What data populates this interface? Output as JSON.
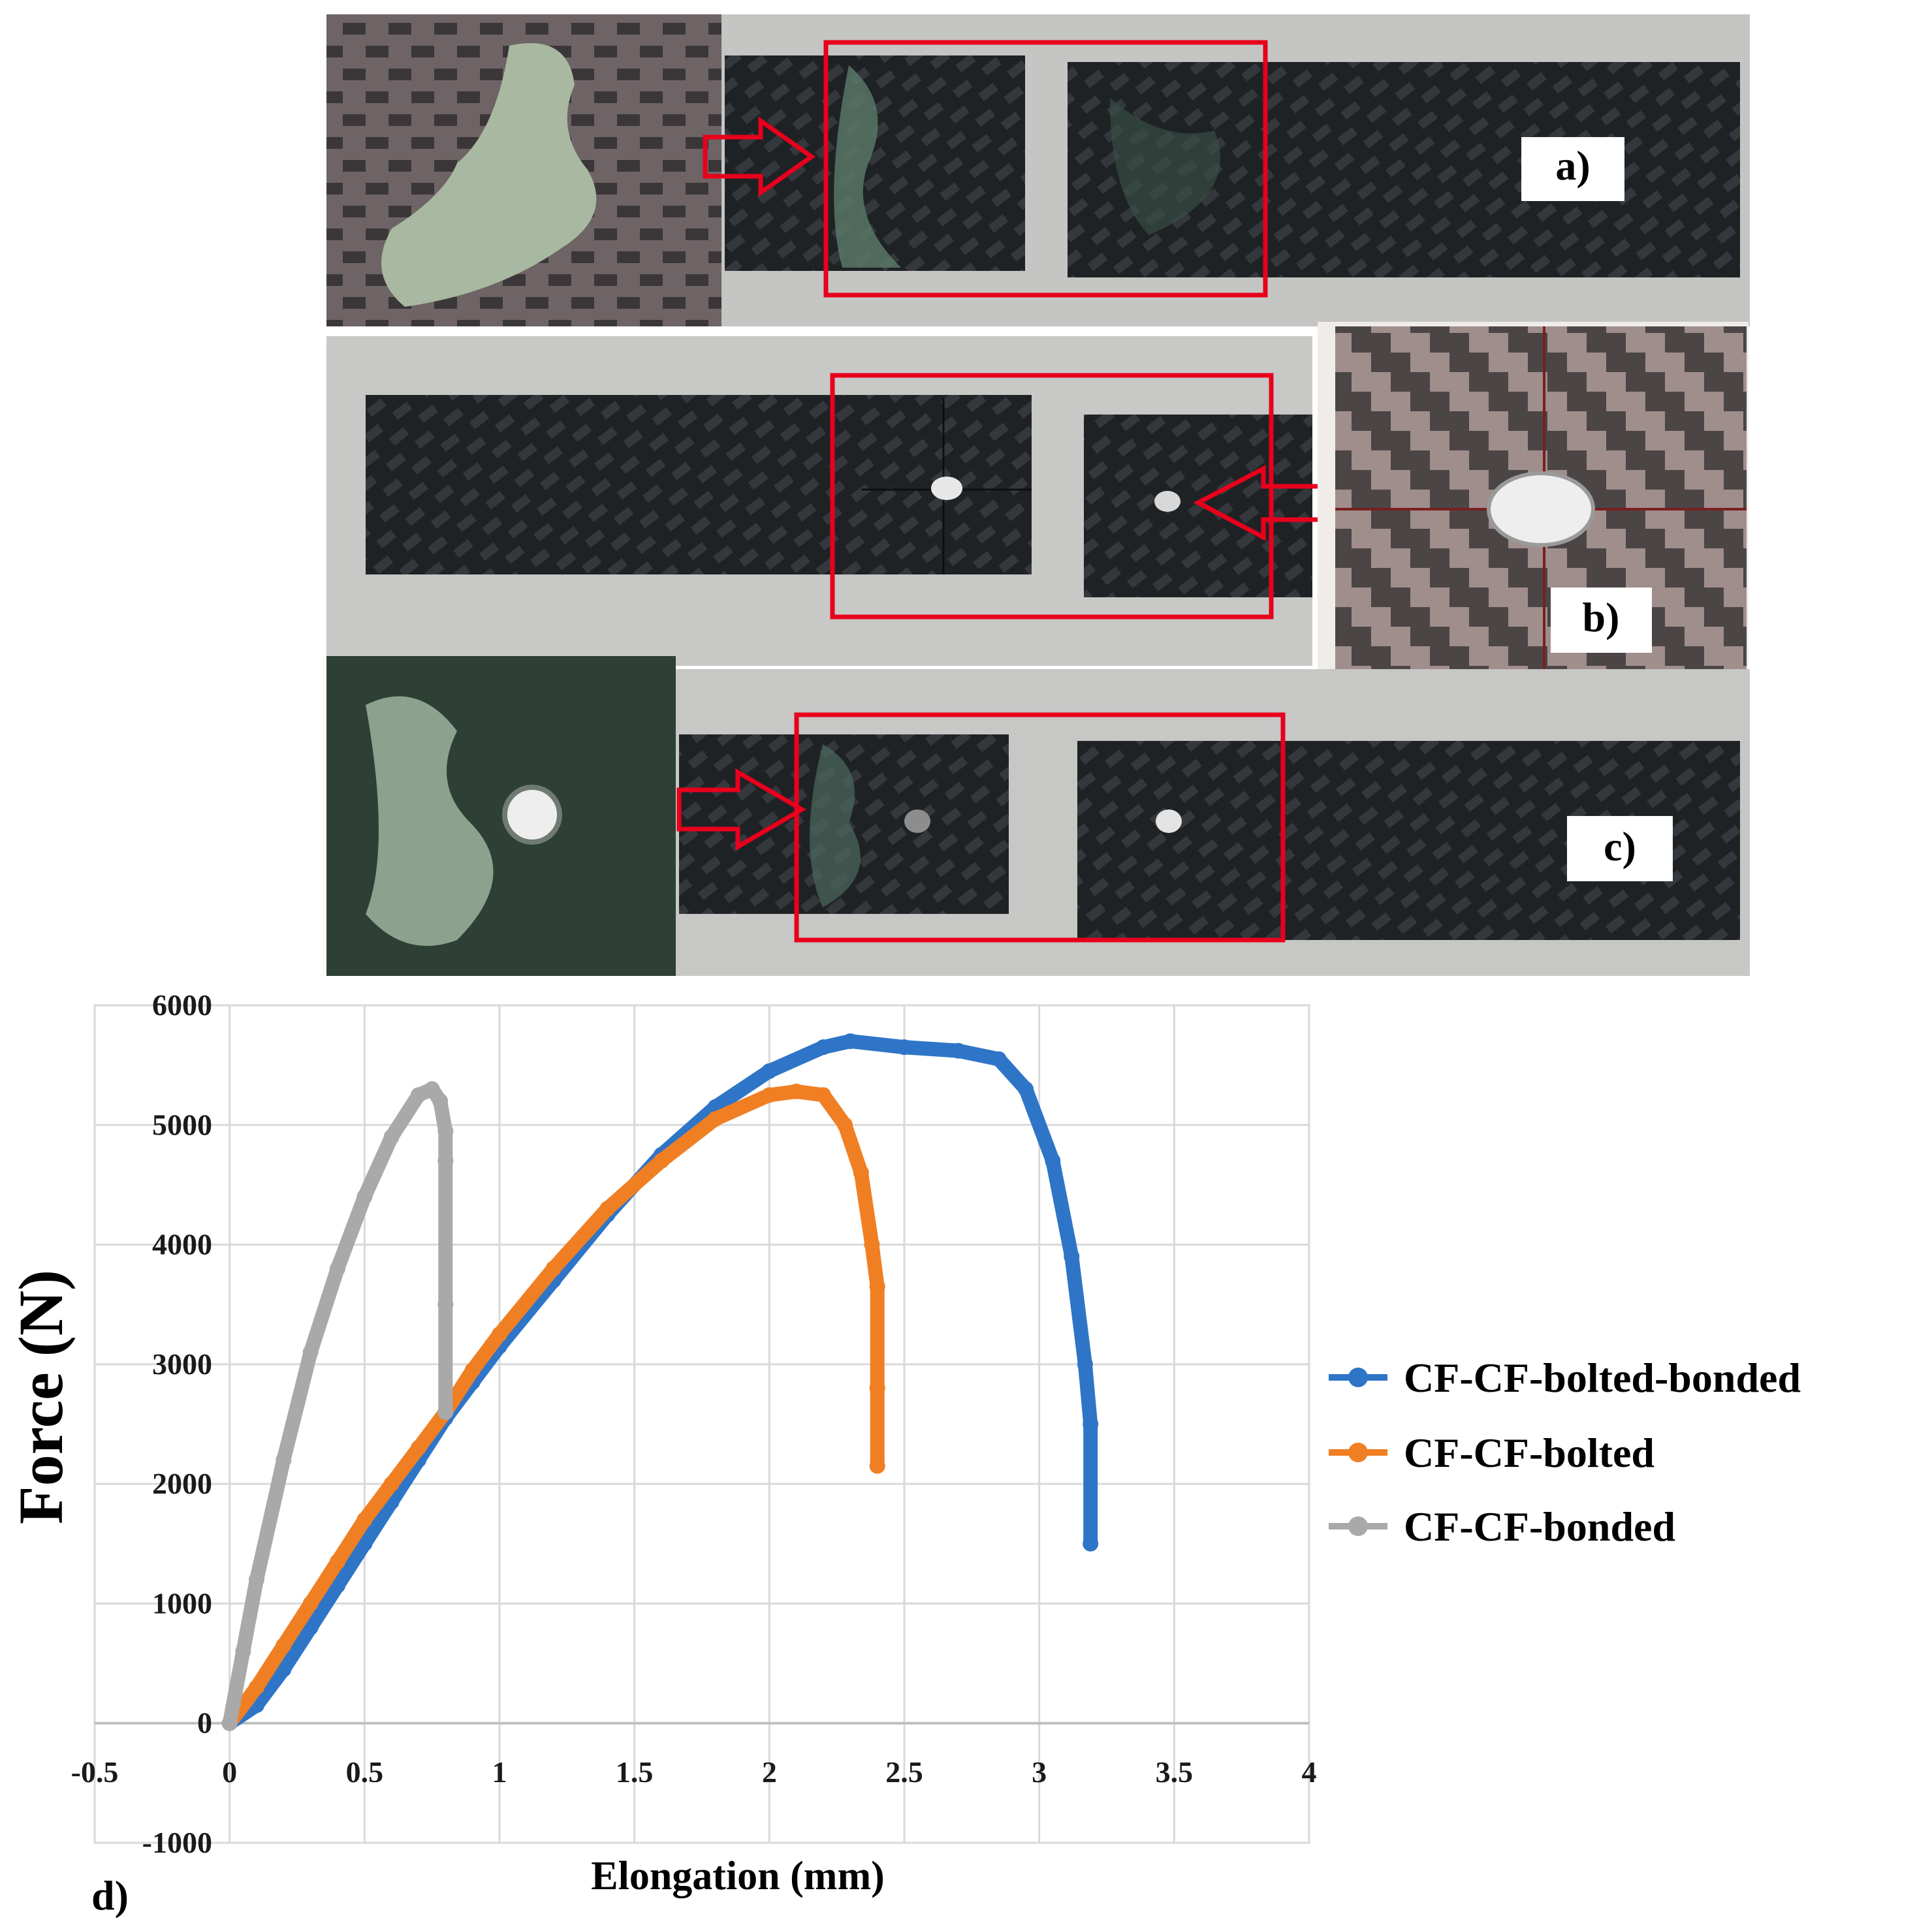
{
  "panels": {
    "a": {
      "label": "a)"
    },
    "b": {
      "label": "b)"
    },
    "c": {
      "label": "c)"
    },
    "d": {
      "label": "d)"
    }
  },
  "colors": {
    "blue": "#2e75c8",
    "orange": "#f07f23",
    "gray": "#a9a9a9",
    "red_frame": "#e8001c",
    "carbon_dark": "#1e2124",
    "table_bg": "#c9c9c7"
  },
  "chart_data": {
    "type": "line",
    "xlabel": "Elongation (mm)",
    "ylabel": "Force (N)",
    "xlim": [
      -0.5,
      4
    ],
    "ylim": [
      -1000,
      6000
    ],
    "x_ticks": [
      "-0.5",
      "0",
      "0.5",
      "1",
      "1.5",
      "2",
      "2.5",
      "3",
      "3.5",
      "4"
    ],
    "y_ticks": [
      "-1000",
      "0",
      "1000",
      "2000",
      "3000",
      "4000",
      "5000",
      "6000"
    ],
    "grid": true,
    "legend_position": "right",
    "series": [
      {
        "name": "CF-CF-bolted-bonded",
        "color": "#2e75c8",
        "x": [
          0.0,
          0.1,
          0.2,
          0.3,
          0.4,
          0.5,
          0.6,
          0.7,
          0.8,
          0.9,
          1.0,
          1.2,
          1.4,
          1.6,
          1.8,
          2.0,
          2.2,
          2.3,
          2.5,
          2.7,
          2.85,
          2.95,
          3.05,
          3.12,
          3.17,
          3.19,
          3.19
        ],
        "y": [
          0,
          150,
          450,
          800,
          1150,
          1500,
          1850,
          2200,
          2550,
          2850,
          3150,
          3700,
          4250,
          4750,
          5150,
          5450,
          5650,
          5700,
          5650,
          5620,
          5550,
          5300,
          4700,
          3900,
          3000,
          2500,
          1500
        ]
      },
      {
        "name": "CF-CF-bolted",
        "color": "#f07f23",
        "x": [
          0.0,
          0.1,
          0.2,
          0.3,
          0.4,
          0.5,
          0.6,
          0.7,
          0.8,
          0.9,
          1.0,
          1.2,
          1.4,
          1.6,
          1.8,
          2.0,
          2.1,
          2.2,
          2.28,
          2.34,
          2.38,
          2.4,
          2.4,
          2.4
        ],
        "y": [
          0,
          300,
          650,
          1000,
          1350,
          1700,
          2000,
          2300,
          2600,
          2950,
          3250,
          3800,
          4300,
          4700,
          5050,
          5250,
          5280,
          5250,
          5000,
          4600,
          4000,
          3650,
          2800,
          2150
        ]
      },
      {
        "name": "CF-CF-bonded",
        "color": "#a9a9a9",
        "x": [
          0.0,
          0.05,
          0.1,
          0.2,
          0.3,
          0.4,
          0.5,
          0.6,
          0.7,
          0.75,
          0.78,
          0.8,
          0.8,
          0.8,
          0.8
        ],
        "y": [
          0,
          600,
          1200,
          2200,
          3100,
          3800,
          4400,
          4900,
          5250,
          5300,
          5200,
          4950,
          4700,
          3500,
          2600
        ]
      }
    ]
  }
}
